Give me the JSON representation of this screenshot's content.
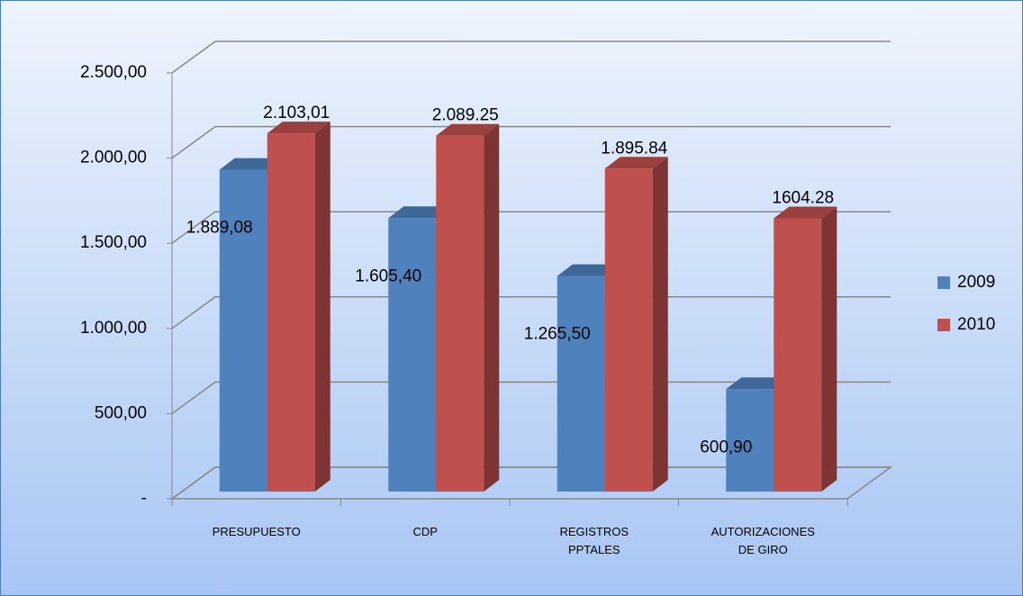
{
  "chart_data": {
    "type": "bar3d",
    "categories": [
      "PRESUPUESTO",
      "CDP",
      "REGISTROS PPTALES",
      "AUTORIZACIONES DE GIRO"
    ],
    "series": [
      {
        "name": "2009",
        "color": "#4f81bd",
        "values": [
          1889.08,
          1605.4,
          1265.5,
          600.9
        ],
        "value_labels": [
          "1.889,08",
          "1.605,40",
          "1.265,50",
          "600,90"
        ]
      },
      {
        "name": "2010",
        "color": "#c0504d",
        "values": [
          2103.01,
          2089.25,
          1895.84,
          1604.28
        ],
        "value_labels": [
          "2.103,01",
          "2.089.25",
          "1.895.84",
          "1604.28"
        ]
      }
    ],
    "ylim": [
      0,
      2500
    ],
    "yticks": [
      {
        "value": 0,
        "label": "-"
      },
      {
        "value": 500,
        "label": "500,00"
      },
      {
        "value": 1000,
        "label": "1.000,00"
      },
      {
        "value": 1500,
        "label": "1.500,00"
      },
      {
        "value": 2000,
        "label": "2.000,00"
      },
      {
        "value": 2500,
        "label": "2.500,00"
      }
    ],
    "grid": true,
    "legend": "right"
  }
}
